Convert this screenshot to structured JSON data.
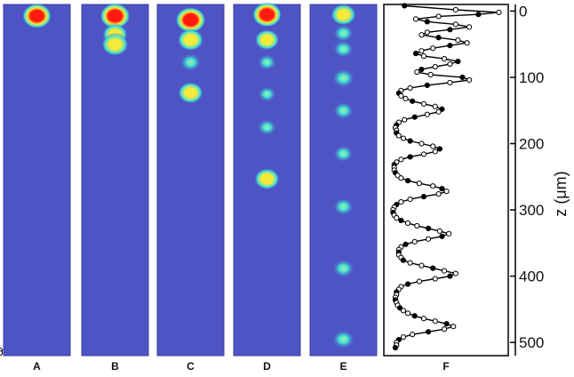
{
  "colors": {
    "background": "#4a4fc0",
    "panel_bg": "#4e54c4",
    "spot_cyan": "#40e0d8",
    "spot_yellow": "#f3ea3a",
    "spot_red": "#ff1a10",
    "trace": "#000000"
  },
  "chart_data": [
    {
      "type": "heatmap",
      "panels": [
        {
          "label": "A",
          "spots": [
            {
              "z": 2,
              "intensity": 0.95
            }
          ]
        },
        {
          "label": "B",
          "spots": [
            {
              "z": 2,
              "intensity": 1.0
            },
            {
              "z": 30,
              "intensity": 0.75
            },
            {
              "z": 45,
              "intensity": 0.85
            }
          ]
        },
        {
          "label": "C",
          "spots": [
            {
              "z": 8,
              "intensity": 1.0
            },
            {
              "z": 38,
              "intensity": 0.8
            },
            {
              "z": 72,
              "intensity": 0.55
            },
            {
              "z": 118,
              "intensity": 0.75
            }
          ]
        },
        {
          "label": "D",
          "spots": [
            {
              "z": 0,
              "intensity": 0.95
            },
            {
              "z": 38,
              "intensity": 0.7
            },
            {
              "z": 72,
              "intensity": 0.4
            },
            {
              "z": 120,
              "intensity": 0.35
            },
            {
              "z": 170,
              "intensity": 0.4
            },
            {
              "z": 248,
              "intensity": 0.75
            }
          ]
        },
        {
          "label": "E",
          "spots": [
            {
              "z": 0,
              "intensity": 0.75
            },
            {
              "z": 28,
              "intensity": 0.5
            },
            {
              "z": 52,
              "intensity": 0.5
            },
            {
              "z": 96,
              "intensity": 0.6
            },
            {
              "z": 145,
              "intensity": 0.5
            },
            {
              "z": 210,
              "intensity": 0.45
            },
            {
              "z": 290,
              "intensity": 0.5
            },
            {
              "z": 383,
              "intensity": 0.55
            },
            {
              "z": 490,
              "intensity": 0.6
            }
          ]
        }
      ],
      "yaxis": {
        "label": "z (μm)",
        "range": [
          -10,
          520
        ],
        "ticks": [
          0,
          100,
          200,
          300,
          400,
          500
        ]
      }
    },
    {
      "type": "line",
      "panel_label": "F",
      "series": [
        {
          "z": [
            -8,
            -2,
            2,
            5,
            8,
            12,
            16,
            20,
            24,
            28,
            32,
            36,
            40,
            44,
            48,
            52,
            56,
            60,
            64,
            68,
            72,
            76,
            80,
            84,
            88,
            92,
            96,
            100,
            104,
            108,
            112,
            116,
            120,
            124,
            128,
            132,
            136,
            140,
            144,
            148,
            152,
            156,
            160,
            164,
            168,
            172,
            176,
            180,
            184,
            188,
            192,
            196,
            200,
            204,
            208,
            212,
            216,
            220,
            224,
            228,
            232,
            236,
            240,
            244,
            248,
            252,
            256,
            260,
            264,
            268,
            272,
            276,
            280,
            284,
            288,
            292,
            296,
            300,
            304,
            308,
            312,
            316,
            320,
            324,
            328,
            332,
            336,
            340,
            344,
            348,
            352,
            356,
            360,
            364,
            368,
            372,
            376,
            380,
            384,
            388,
            392,
            396,
            400,
            404,
            408,
            412,
            416,
            420,
            424,
            428,
            432,
            436,
            440,
            444,
            448,
            452,
            456,
            460,
            464,
            468,
            472,
            476,
            480,
            484,
            488,
            492,
            496,
            500,
            504,
            508,
            512,
            516
          ],
          "F": [
            0.15,
            0.6,
            0.98,
            0.8,
            0.45,
            0.25,
            0.35,
            0.6,
            0.72,
            0.55,
            0.35,
            0.3,
            0.45,
            0.62,
            0.7,
            0.55,
            0.4,
            0.3,
            0.25,
            0.32,
            0.5,
            0.62,
            0.55,
            0.42,
            0.3,
            0.26,
            0.38,
            0.66,
            0.72,
            0.55,
            0.35,
            0.2,
            0.12,
            0.1,
            0.12,
            0.16,
            0.22,
            0.32,
            0.42,
            0.48,
            0.45,
            0.35,
            0.24,
            0.15,
            0.1,
            0.08,
            0.07,
            0.08,
            0.08,
            0.1,
            0.14,
            0.2,
            0.3,
            0.4,
            0.46,
            0.42,
            0.32,
            0.2,
            0.12,
            0.08,
            0.06,
            0.06,
            0.06,
            0.07,
            0.09,
            0.12,
            0.18,
            0.28,
            0.4,
            0.48,
            0.52,
            0.45,
            0.32,
            0.2,
            0.12,
            0.08,
            0.06,
            0.05,
            0.05,
            0.06,
            0.08,
            0.12,
            0.18,
            0.26,
            0.36,
            0.46,
            0.54,
            0.48,
            0.36,
            0.24,
            0.16,
            0.12,
            0.1,
            0.1,
            0.1,
            0.12,
            0.14,
            0.2,
            0.3,
            0.4,
            0.5,
            0.6,
            0.55,
            0.42,
            0.28,
            0.18,
            0.12,
            0.1,
            0.08,
            0.08,
            0.07,
            0.07,
            0.08,
            0.09,
            0.11,
            0.14,
            0.18,
            0.24,
            0.32,
            0.42,
            0.52,
            0.58,
            0.5,
            0.36,
            0.22,
            0.14,
            0.1,
            0.08,
            0.08,
            0.07
          ]
        }
      ],
      "xlabel": "",
      "yaxis": {
        "label": "z (μm)",
        "range": [
          -10,
          520
        ],
        "ticks": [
          0,
          100,
          200,
          300,
          400,
          500
        ]
      }
    }
  ]
}
